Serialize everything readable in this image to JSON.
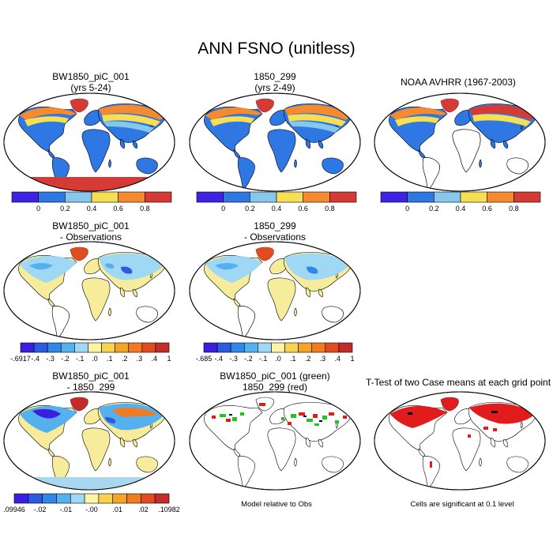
{
  "title": "ANN FSNO (unitless)",
  "panels": {
    "p1": {
      "title": [
        "BW1850_piC_001",
        "(yrs 5-24)"
      ]
    },
    "p2": {
      "title": [
        "1850_299",
        "(yrs 2-49)"
      ]
    },
    "p3": {
      "title": [
        "NOAA AVHRR (1967-2003)"
      ]
    },
    "p4": {
      "title": [
        "BW1850_piC_001",
        "- Observations"
      ]
    },
    "p5": {
      "title": [
        "1850_299",
        "- Observations"
      ]
    },
    "p7": {
      "title": [
        "BW1850_piC_001",
        "- 1850_299"
      ]
    },
    "p8": {
      "title": [
        "BW1850_piC_001 (green)",
        "1850_299 (red)"
      ]
    },
    "p9": {
      "title": [
        "T-Test of two Case means at each grid point"
      ]
    }
  },
  "notes": {
    "model_obs": "Model relative to Obs",
    "significance": "Cells are significant at 0.1 level"
  },
  "colorbars": {
    "main": {
      "colors": [
        "#3e22e6",
        "#2f77e3",
        "#86c8ec",
        "#f7df53",
        "#f58a2e",
        "#d63a34"
      ],
      "labels": [
        "0",
        "0.2",
        "0.4",
        "0.6",
        "0.8"
      ]
    },
    "obs_diff_1": {
      "colors": [
        "#3b1ee0",
        "#2c5ae0",
        "#2f87e8",
        "#55b0ee",
        "#9fd8f4",
        "#fdf4a5",
        "#f8d350",
        "#f4a428",
        "#f07b22",
        "#e04c20",
        "#c42c2c"
      ],
      "labels": [
        "-.6917",
        "-.4",
        "-.3",
        "-.2",
        "-.1",
        ".0",
        ".1",
        ".2",
        ".3",
        ".4",
        "1"
      ]
    },
    "obs_diff_2": {
      "colors": [
        "#3b1ee0",
        "#2c5ae0",
        "#2f87e8",
        "#55b0ee",
        "#9fd8f4",
        "#fdf4a5",
        "#f8d350",
        "#f4a428",
        "#f07b22",
        "#e04c20",
        "#c42c2c"
      ],
      "labels": [
        "-.685",
        "-.4",
        "-.3",
        "-.2",
        "-.1",
        ".0",
        ".1",
        ".2",
        ".3",
        ".4",
        "1"
      ]
    },
    "case_diff": {
      "colors": [
        "#3b1ee0",
        "#2c5ae0",
        "#2f87e8",
        "#55b0ee",
        "#9fd8f4",
        "#fdf4a5",
        "#f8d350",
        "#f4a428",
        "#f07b22",
        "#e04c20",
        "#c42c2c"
      ],
      "labels": [
        ".09946",
        "-.02",
        "-.01",
        "-.00",
        ".01",
        ".02",
        ".10982"
      ]
    }
  },
  "colors": {
    "ocean": "#ffffff",
    "land_outline": "#000000",
    "snow_low": "#2f77e3",
    "snow_mid": "#86c8ec",
    "snow_high": "#f7df53",
    "snow_veryhigh": "#f58a2e",
    "snow_max": "#d63a34",
    "diff_neutral": "#f6ec9c",
    "sig_red": "#e01c1c",
    "green": "#22c422",
    "antarctica_diff": "#a8d8f0"
  }
}
